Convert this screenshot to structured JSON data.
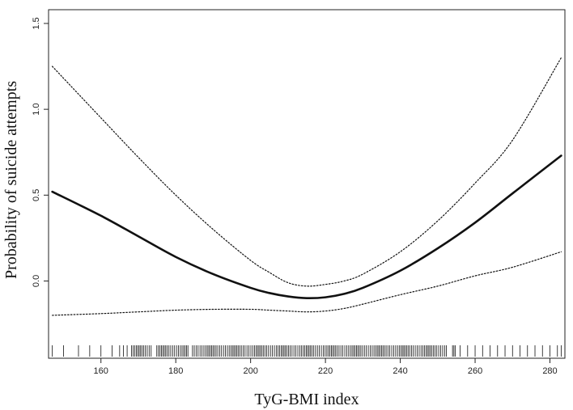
{
  "chart_data": {
    "type": "line",
    "xlabel": "TyG-BMI index",
    "ylabel": "Probability of suicide attempts",
    "xlim": [
      146,
      284
    ],
    "ylim": [
      -0.45,
      1.58
    ],
    "x_ticks": [
      160,
      180,
      200,
      220,
      240,
      260,
      280
    ],
    "y_ticks": [
      0.0,
      0.5,
      1.0,
      1.5
    ],
    "x_tick_labels": [
      "160",
      "180",
      "200",
      "220",
      "240",
      "260",
      "280"
    ],
    "y_tick_labels": [
      "0.0",
      "0.5",
      "1.0",
      "1.5"
    ],
    "grid": false,
    "x": [
      147,
      160,
      170,
      180,
      190,
      200,
      205,
      210,
      215,
      220,
      225,
      230,
      240,
      250,
      260,
      270,
      283
    ],
    "series": [
      {
        "style": "solid",
        "values": [
          0.52,
          0.38,
          0.26,
          0.14,
          0.04,
          -0.04,
          -0.07,
          -0.09,
          -0.1,
          -0.095,
          -0.075,
          -0.04,
          0.06,
          0.19,
          0.34,
          0.51,
          0.73
        ]
      },
      {
        "style": "dotted",
        "values": [
          1.25,
          0.95,
          0.72,
          0.5,
          0.3,
          0.12,
          0.05,
          -0.01,
          -0.03,
          -0.02,
          0.0,
          0.04,
          0.17,
          0.35,
          0.57,
          0.82,
          1.3
        ]
      },
      {
        "style": "dotted",
        "values": [
          -0.2,
          -0.19,
          -0.18,
          -0.17,
          -0.165,
          -0.165,
          -0.17,
          -0.175,
          -0.18,
          -0.175,
          -0.16,
          -0.135,
          -0.08,
          -0.03,
          0.03,
          0.08,
          0.17
        ]
      }
    ],
    "rug": {
      "dense_range": [
        168,
        255
      ],
      "sparse": [
        147,
        150,
        154,
        157,
        160,
        163,
        165,
        166,
        167,
        256,
        258,
        260,
        262,
        264,
        266,
        268,
        270,
        272,
        274,
        276,
        278,
        280,
        282,
        283
      ]
    }
  }
}
